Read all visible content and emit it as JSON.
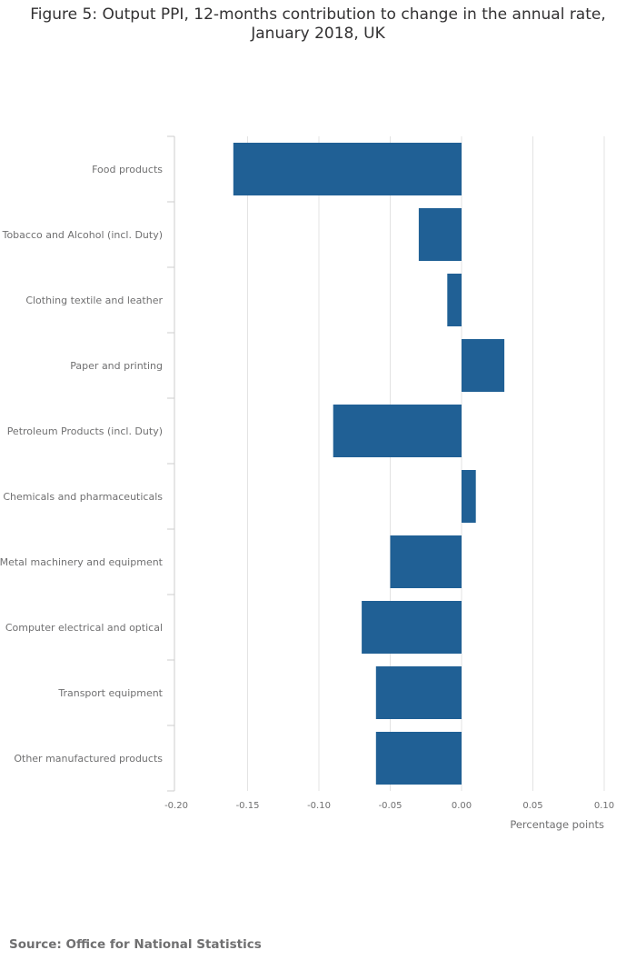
{
  "chart_data": {
    "type": "bar",
    "orientation": "horizontal",
    "title": "Figure 5: Output PPI, 12-months contribution to change in the annual rate, January 2018, UK",
    "categories": [
      "Food products",
      "Tobacco and Alcohol (incl. Duty)",
      "Clothing textile and leather",
      "Paper and printing",
      "Petroleum Products (incl. Duty)",
      "Chemicals and pharmaceuticals",
      "Metal machinery and equipment",
      "Computer electrical and optical",
      "Transport equipment",
      "Other manufactured products"
    ],
    "values": [
      -0.16,
      -0.03,
      -0.01,
      0.03,
      -0.09,
      0.01,
      -0.05,
      -0.07,
      -0.06,
      -0.06
    ],
    "xlabel": "Percentage points",
    "ylabel": "",
    "xlim": [
      -0.2,
      0.1
    ],
    "xticks": [
      -0.2,
      -0.15,
      -0.1,
      -0.05,
      0.0,
      0.05,
      0.1
    ],
    "xtick_labels": [
      "-0.20",
      "-0.15",
      "-0.10",
      "-0.05",
      "0.00",
      "0.05",
      "0.10"
    ],
    "grid": true,
    "bar_color": "#206095",
    "gridline_color": "#e3e3e3"
  },
  "source": "Source: Office for National Statistics"
}
